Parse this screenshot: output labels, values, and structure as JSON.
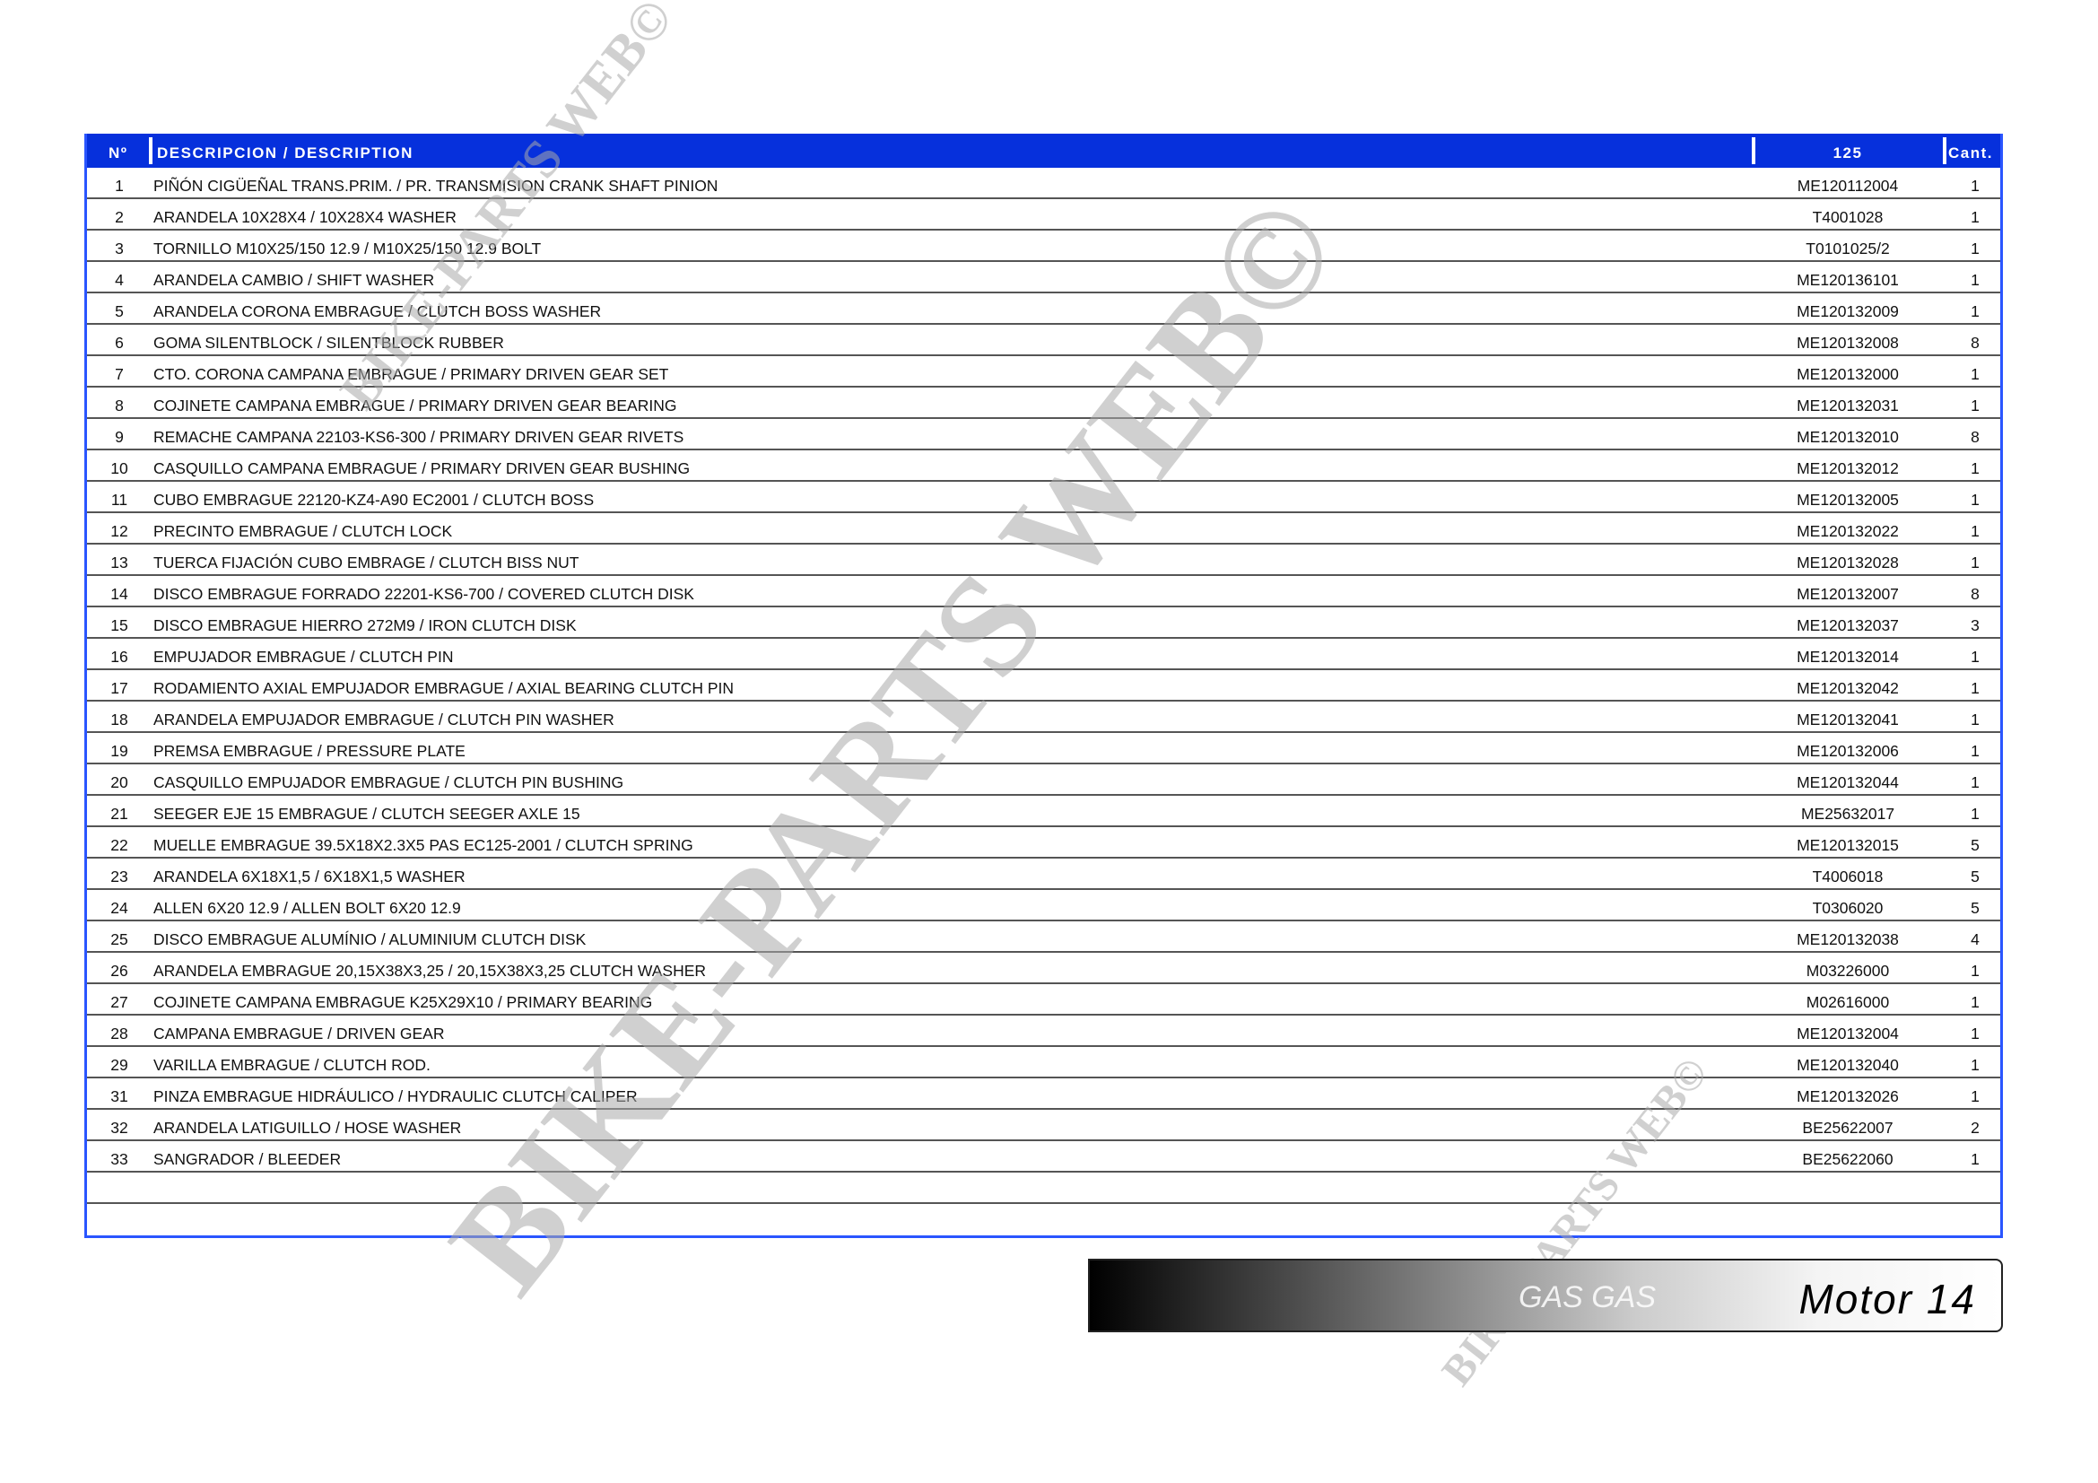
{
  "header": {
    "no": "Nº",
    "description": "DESCRIPCION / DESCRIPTION",
    "model": "125",
    "qty": "Cant."
  },
  "rows": [
    {
      "no": "1",
      "desc": "PIÑÓN CIGÜEÑAL TRANS.PRIM. / PR. TRANSMISION CRANK SHAFT PINION",
      "ref": "ME120112004",
      "qty": "1"
    },
    {
      "no": "2",
      "desc": "ARANDELA 10X28X4 / 10X28X4 WASHER",
      "ref": "T4001028",
      "qty": "1"
    },
    {
      "no": "3",
      "desc": "TORNILLO M10X25/150 12.9 / M10X25/150 12.9 BOLT",
      "ref": "T0101025/2",
      "qty": "1"
    },
    {
      "no": "4",
      "desc": "ARANDELA CAMBIO / SHIFT WASHER",
      "ref": "ME120136101",
      "qty": "1"
    },
    {
      "no": "5",
      "desc": "ARANDELA CORONA EMBRAGUE / CLUTCH BOSS WASHER",
      "ref": "ME120132009",
      "qty": "1"
    },
    {
      "no": "6",
      "desc": "GOMA SILENTBLOCK / SILENTBLOCK RUBBER",
      "ref": "ME120132008",
      "qty": "8"
    },
    {
      "no": "7",
      "desc": "CTO. CORONA CAMPANA EMBRAGUE / PRIMARY DRIVEN GEAR SET",
      "ref": "ME120132000",
      "qty": "1"
    },
    {
      "no": "8",
      "desc": "COJINETE CAMPANA EMBRAGUE / PRIMARY DRIVEN GEAR BEARING",
      "ref": "ME120132031",
      "qty": "1"
    },
    {
      "no": "9",
      "desc": "REMACHE CAMPANA 22103-KS6-300 / PRIMARY DRIVEN GEAR RIVETS",
      "ref": "ME120132010",
      "qty": "8"
    },
    {
      "no": "10",
      "desc": "CASQUILLO CAMPANA EMBRAGUE / PRIMARY DRIVEN GEAR BUSHING",
      "ref": "ME120132012",
      "qty": "1"
    },
    {
      "no": "11",
      "desc": "CUBO EMBRAGUE 22120-KZ4-A90 EC2001 / CLUTCH BOSS",
      "ref": "ME120132005",
      "qty": "1"
    },
    {
      "no": "12",
      "desc": "PRECINTO EMBRAGUE / CLUTCH LOCK",
      "ref": "ME120132022",
      "qty": "1"
    },
    {
      "no": "13",
      "desc": "TUERCA FIJACIÓN CUBO EMBRAGE / CLUTCH BISS NUT",
      "ref": "ME120132028",
      "qty": "1"
    },
    {
      "no": "14",
      "desc": "DISCO EMBRAGUE FORRADO 22201-KS6-700 / COVERED CLUTCH DISK",
      "ref": "ME120132007",
      "qty": "8"
    },
    {
      "no": "15",
      "desc": "DISCO EMBRAGUE HIERRO 272M9 / IRON CLUTCH DISK",
      "ref": "ME120132037",
      "qty": "3"
    },
    {
      "no": "16",
      "desc": "EMPUJADOR EMBRAGUE / CLUTCH PIN",
      "ref": "ME120132014",
      "qty": "1"
    },
    {
      "no": "17",
      "desc": "RODAMIENTO AXIAL EMPUJADOR EMBRAGUE / AXIAL BEARING CLUTCH PIN",
      "ref": "ME120132042",
      "qty": "1"
    },
    {
      "no": "18",
      "desc": "ARANDELA EMPUJADOR EMBRAGUE / CLUTCH PIN WASHER",
      "ref": "ME120132041",
      "qty": "1"
    },
    {
      "no": "19",
      "desc": "PREMSA EMBRAGUE / PRESSURE PLATE",
      "ref": "ME120132006",
      "qty": "1"
    },
    {
      "no": "20",
      "desc": "CASQUILLO EMPUJADOR EMBRAGUE / CLUTCH PIN BUSHING",
      "ref": "ME120132044",
      "qty": "1"
    },
    {
      "no": "21",
      "desc": "SEEGER EJE 15 EMBRAGUE / CLUTCH SEEGER AXLE 15",
      "ref": "ME25632017",
      "qty": "1"
    },
    {
      "no": "22",
      "desc": "MUELLE EMBRAGUE 39.5X18X2.3X5 PAS EC125-2001 / CLUTCH SPRING",
      "ref": "ME120132015",
      "qty": "5"
    },
    {
      "no": "23",
      "desc": "ARANDELA 6X18X1,5 / 6X18X1,5 WASHER",
      "ref": "T4006018",
      "qty": "5"
    },
    {
      "no": "24",
      "desc": "ALLEN 6X20 12.9 / ALLEN BOLT 6X20 12.9",
      "ref": "T0306020",
      "qty": "5"
    },
    {
      "no": "25",
      "desc": "DISCO EMBRAGUE ALUMÍNIO / ALUMINIUM CLUTCH DISK",
      "ref": "ME120132038",
      "qty": "4"
    },
    {
      "no": "26",
      "desc": "ARANDELA EMBRAGUE 20,15X38X3,25 / 20,15X38X3,25 CLUTCH WASHER",
      "ref": "M03226000",
      "qty": "1"
    },
    {
      "no": "27",
      "desc": "COJINETE CAMPANA EMBRAGUE K25X29X10 / PRIMARY BEARING",
      "ref": "M02616000",
      "qty": "1"
    },
    {
      "no": "28",
      "desc": "CAMPANA EMBRAGUE / DRIVEN GEAR",
      "ref": "ME120132004",
      "qty": "1"
    },
    {
      "no": "29",
      "desc": "VARILLA EMBRAGUE / CLUTCH ROD.",
      "ref": "ME120132040",
      "qty": "1"
    },
    {
      "no": "31",
      "desc": "PINZA EMBRAGUE HIDRÁULICO / HYDRAULIC CLUTCH CALIPER",
      "ref": "ME120132026",
      "qty": "1"
    },
    {
      "no": "32",
      "desc": "ARANDELA LATIGUILLO / HOSE WASHER",
      "ref": "BE25622007",
      "qty": "2"
    },
    {
      "no": "33",
      "desc": "SANGRADOR / BLEEDER",
      "ref": "BE25622060",
      "qty": "1"
    }
  ],
  "footer": {
    "brand": "GAS GAS",
    "section": "Motor 14"
  },
  "watermark": {
    "text": "BIKE-PARTS WEB©",
    "color": "#aaaaaa"
  },
  "colors": {
    "header_bg": "#0630dc",
    "border": "#2a55ff"
  }
}
